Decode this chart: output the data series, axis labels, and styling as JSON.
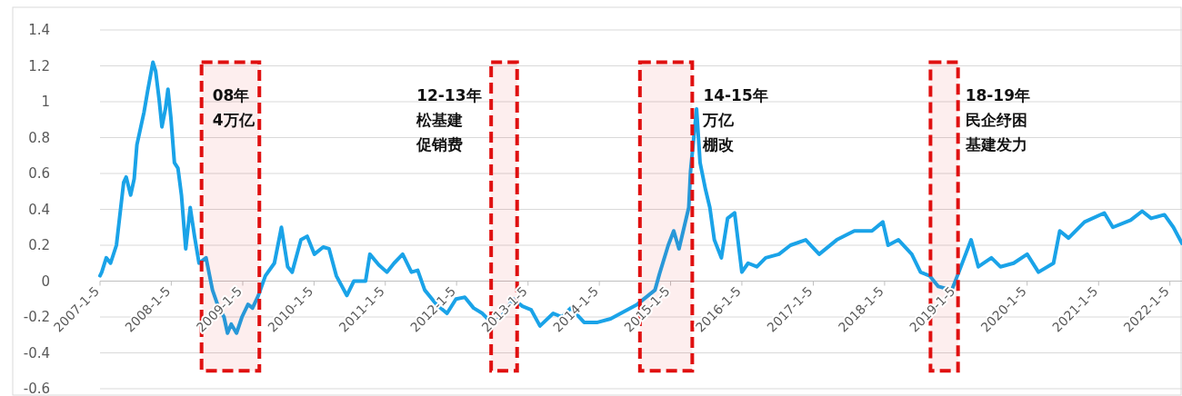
{
  "chart_data": {
    "type": "line",
    "x": [
      "2007-01-05",
      "2007-01-14",
      "2007-02-06",
      "2007-02-28",
      "2007-03-30",
      "2007-05-06",
      "2007-05-19",
      "2007-06-11",
      "2007-06-29",
      "2007-07-13",
      "2007-08-18",
      "2007-09-06",
      "2007-10-03",
      "2007-10-17",
      "2007-11-04",
      "2007-11-18",
      "2007-12-06",
      "2007-12-19",
      "2008-01-03",
      "2008-01-21",
      "2008-02-08",
      "2008-02-26",
      "2008-03-19",
      "2008-04-11",
      "2008-05-03",
      "2008-05-26",
      "2008-07-01",
      "2008-08-03",
      "2008-09-04",
      "2008-10-01",
      "2008-10-19",
      "2008-11-07",
      "2008-12-04",
      "2009-01-01",
      "2009-02-01",
      "2009-02-24",
      "2009-03-26",
      "2009-05-01",
      "2009-06-16",
      "2009-07-22",
      "2009-08-23",
      "2009-09-15",
      "2009-10-30",
      "2009-12-01",
      "2010-01-07",
      "2010-02-21",
      "2010-03-23",
      "2010-04-29",
      "2010-06-22",
      "2010-07-28",
      "2010-09-26",
      "2010-10-18",
      "2010-12-03",
      "2011-01-13",
      "2011-02-19",
      "2011-04-04",
      "2011-05-19",
      "2011-06-20",
      "2011-07-26",
      "2011-09-24",
      "2011-11-17",
      "2012-01-02",
      "2012-02-16",
      "2012-04-01",
      "2012-05-16",
      "2012-06-30",
      "2012-08-15",
      "2012-10-22",
      "2012-12-07",
      "2013-01-21",
      "2013-03-07",
      "2013-05-14",
      "2013-06-28",
      "2013-08-12",
      "2013-10-19",
      "2013-12-27",
      "2014-03-04",
      "2014-07-18",
      "2014-10-17",
      "2014-11-09",
      "2014-12-24",
      "2015-01-21",
      "2015-02-17",
      "2015-04-08",
      "2015-04-17",
      "2015-05-18",
      "2015-06-05",
      "2015-07-03",
      "2015-07-25",
      "2015-08-17",
      "2015-09-22",
      "2015-10-24",
      "2015-11-29",
      "2016-01-05",
      "2016-02-06",
      "2016-03-22",
      "2016-05-06",
      "2016-07-13",
      "2016-09-10",
      "2016-11-27",
      "2017-02-04",
      "2017-05-05",
      "2017-08-03",
      "2017-11-01",
      "2017-12-27",
      "2018-01-23",
      "2018-03-17",
      "2018-05-24",
      "2018-07-08",
      "2018-08-23",
      "2018-10-07",
      "2018-12-15",
      "2019-01-20",
      "2019-03-24",
      "2019-04-30",
      "2019-07-06",
      "2019-08-21",
      "2019-10-28",
      "2020-01-05",
      "2020-03-03",
      "2020-05-19",
      "2020-06-20",
      "2020-08-04",
      "2020-10-25",
      "2021-02-03",
      "2021-03-19",
      "2021-06-18",
      "2021-08-16",
      "2021-10-01",
      "2021-12-08",
      "2022-01-23",
      "2022-03-08"
    ],
    "series": [
      {
        "color": "#1aa3e8",
        "values": [
          0.03,
          0.05,
          0.13,
          0.1,
          0.2,
          0.55,
          0.58,
          0.48,
          0.57,
          0.76,
          0.94,
          1.06,
          1.22,
          1.17,
          1.01,
          0.86,
          0.96,
          1.07,
          0.91,
          0.66,
          0.63,
          0.48,
          0.18,
          0.41,
          0.25,
          0.1,
          0.13,
          -0.05,
          -0.15,
          -0.2,
          -0.29,
          -0.24,
          -0.29,
          -0.2,
          -0.13,
          -0.15,
          -0.08,
          0.03,
          0.1,
          0.3,
          0.08,
          0.05,
          0.23,
          0.25,
          0.15,
          0.19,
          0.18,
          0.03,
          -0.08,
          0.0,
          0.0,
          0.15,
          0.09,
          0.05,
          0.1,
          0.15,
          0.05,
          0.06,
          -0.05,
          -0.13,
          -0.18,
          -0.1,
          -0.09,
          -0.15,
          -0.18,
          -0.23,
          -0.21,
          -0.1,
          -0.14,
          -0.16,
          -0.25,
          -0.18,
          -0.2,
          -0.15,
          -0.23,
          -0.23,
          -0.21,
          -0.13,
          -0.05,
          0.04,
          0.2,
          0.28,
          0.18,
          0.41,
          0.61,
          0.96,
          0.66,
          0.51,
          0.41,
          0.23,
          0.13,
          0.35,
          0.38,
          0.05,
          0.1,
          0.08,
          0.13,
          0.15,
          0.2,
          0.23,
          0.15,
          0.23,
          0.28,
          0.28,
          0.33,
          0.2,
          0.23,
          0.15,
          0.05,
          0.03,
          -0.03,
          -0.05,
          0.05,
          0.23,
          0.08,
          0.13,
          0.08,
          0.1,
          0.15,
          0.05,
          0.1,
          0.28,
          0.24,
          0.33,
          0.38,
          0.3,
          0.34,
          0.39,
          0.35,
          0.37,
          0.3,
          0.21
        ]
      }
    ],
    "xlim": [
      "2007-01-05",
      "2022-03-08"
    ],
    "xticks": [
      {
        "value": "2007-01-05",
        "label": "2007-1-5"
      },
      {
        "value": "2008-01-05",
        "label": "2008-1-5"
      },
      {
        "value": "2009-01-05",
        "label": "2009-1-5"
      },
      {
        "value": "2010-01-05",
        "label": "2010-1-5"
      },
      {
        "value": "2011-01-05",
        "label": "2011-1-5"
      },
      {
        "value": "2012-01-05",
        "label": "2012-1-5"
      },
      {
        "value": "2013-01-05",
        "label": "2013-1-5"
      },
      {
        "value": "2014-01-05",
        "label": "2014-1-5"
      },
      {
        "value": "2015-01-05",
        "label": "2015-1-5"
      },
      {
        "value": "2016-01-05",
        "label": "2016-1-5"
      },
      {
        "value": "2017-01-05",
        "label": "2017-1-5"
      },
      {
        "value": "2018-01-05",
        "label": "2018-1-5"
      },
      {
        "value": "2019-01-05",
        "label": "2019-1-5"
      },
      {
        "value": "2020-01-05",
        "label": "2020-1-5"
      },
      {
        "value": "2021-01-05",
        "label": "2021-1-5"
      },
      {
        "value": "2022-01-05",
        "label": "2022-1-5"
      }
    ],
    "ylim": [
      -0.6,
      1.4
    ],
    "yticks": [
      {
        "value": -0.6,
        "label": "-0.6"
      },
      {
        "value": -0.4,
        "label": "-0.4"
      },
      {
        "value": -0.2,
        "label": "-0.2"
      },
      0,
      {
        "value": 0.2,
        "label": "0.2"
      },
      {
        "value": 0.4,
        "label": "0.4"
      },
      {
        "value": 0.6,
        "label": "0.6"
      },
      {
        "value": 0.8,
        "label": "0.8"
      },
      1,
      {
        "value": 1.2,
        "label": "1.2"
      },
      {
        "value": 1.4,
        "label": "1.4"
      }
    ],
    "grid": "y",
    "bands": [
      {
        "axis": "x",
        "from": "2008-06-08",
        "to": "2009-03-31",
        "label": "08年4万亿",
        "color": "#e01010"
      },
      {
        "axis": "x",
        "from": "2012-06-30",
        "to": "2012-11-10",
        "label": "12-13年松基建促销费",
        "color": "#e01010"
      },
      {
        "axis": "x",
        "from": "2014-08-01",
        "to": "2015-04-26",
        "label": "14-15年万亿棚改",
        "color": "#e01010"
      },
      {
        "axis": "x",
        "from": "2018-08-28",
        "to": "2019-01-16",
        "label": "18-19年民企纾困基建发力",
        "color": "#e01010"
      }
    ]
  }
}
